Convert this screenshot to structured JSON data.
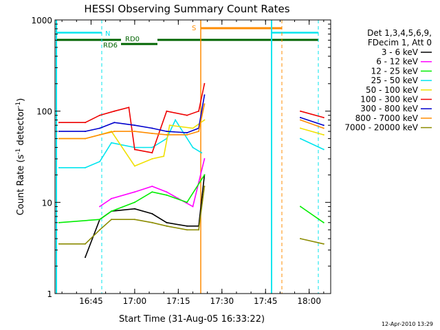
{
  "chart_data": {
    "type": "line",
    "title": "HESSI Observing Summary Count Rates",
    "xlabel": "Start Time (31-Aug-05 16:33:22)",
    "ylabel_main": "Count Rate (s",
    "ylabel_sup1": "-1",
    "ylabel_mid": " detector",
    "ylabel_sup2": "-1",
    "ylabel_end": ")",
    "y_scale": "log",
    "ylim": [
      1,
      1000
    ],
    "xlim": [
      "16:33",
      "18:07"
    ],
    "x_ticks": [
      "16:45",
      "17:00",
      "17:15",
      "17:30",
      "17:45",
      "18:00"
    ],
    "y_ticks": [
      "1",
      "10",
      "100",
      "1000"
    ],
    "legend_title": [
      "Det 1,3,4,5,6,9,",
      "FDecim 1, Att 0"
    ],
    "legend_placement": "right",
    "footer": "12-Apr-2010 13:29",
    "flags": [
      {
        "label": "N",
        "color": "#00e5ee"
      },
      {
        "label": "S",
        "color": "#ff8c00"
      },
      {
        "label": "RD0",
        "color": "#006400"
      },
      {
        "label": "RD6",
        "color": "#006400"
      }
    ],
    "series": [
      {
        "name": "3 - 6 keV",
        "color": "#000000",
        "x": [
          "16:43",
          "16:48",
          "16:52",
          "17:00",
          "17:06",
          "17:11",
          "17:18",
          "17:22",
          "17:24"
        ],
        "y": [
          2.5,
          6.5,
          8,
          8.5,
          7.5,
          6,
          5.5,
          5.5,
          20
        ]
      },
      {
        "name": "6 - 12 keV",
        "color": "#ff00ff",
        "x": [
          "16:48",
          "16:52",
          "17:00",
          "17:06",
          "17:11",
          "17:15",
          "17:20",
          "17:24"
        ],
        "y": [
          9,
          11,
          13,
          15,
          13,
          11,
          9,
          30
        ]
      },
      {
        "name": "12 - 25 keV",
        "color": "#00ee00",
        "x": [
          "16:34",
          "16:48",
          "16:52",
          "17:00",
          "17:06",
          "17:11",
          "17:18",
          "17:24",
          "17:57",
          "18:05"
        ],
        "y": [
          6,
          6.5,
          8,
          10,
          13,
          12,
          10,
          20,
          9,
          6
        ]
      },
      {
        "name": "25 - 50 keV",
        "color": "#00e5ee",
        "x": [
          "16:34",
          "16:43",
          "16:48",
          "16:52",
          "17:00",
          "17:06",
          "17:11",
          "17:14",
          "17:20",
          "17:23",
          "17:57",
          "18:05"
        ],
        "y": [
          24,
          24,
          28,
          45,
          40,
          40,
          50,
          80,
          40,
          35,
          50,
          38
        ]
      },
      {
        "name": "50 - 100 keV",
        "color": "#f0e000",
        "x": [
          "16:34",
          "16:43",
          "16:48",
          "16:52",
          "17:00",
          "17:06",
          "17:10",
          "17:12",
          "17:20",
          "17:24",
          "17:57",
          "18:05"
        ],
        "y": [
          50,
          50,
          55,
          60,
          25,
          30,
          32,
          70,
          65,
          80,
          65,
          55
        ]
      },
      {
        "name": "100 - 300 keV",
        "color": "#ee0000",
        "x": [
          "16:34",
          "16:43",
          "16:48",
          "16:53",
          "16:58",
          "17:00",
          "17:06",
          "17:11",
          "17:18",
          "17:22",
          "17:24",
          "17:57",
          "18:05"
        ],
        "y": [
          75,
          75,
          90,
          100,
          110,
          38,
          35,
          100,
          90,
          100,
          200,
          100,
          85
        ]
      },
      {
        "name": "300 - 800 keV",
        "color": "#0000cd",
        "x": [
          "16:34",
          "16:43",
          "16:48",
          "16:53",
          "17:00",
          "17:06",
          "17:11",
          "17:18",
          "17:22",
          "17:24",
          "17:57",
          "18:05"
        ],
        "y": [
          60,
          60,
          65,
          75,
          70,
          65,
          60,
          58,
          65,
          150,
          85,
          70
        ]
      },
      {
        "name": "800 - 7000 keV",
        "color": "#ff8c00",
        "x": [
          "16:34",
          "16:43",
          "16:48",
          "16:53",
          "17:00",
          "17:06",
          "17:11",
          "17:18",
          "17:22",
          "17:24",
          "17:57",
          "18:05"
        ],
        "y": [
          50,
          50,
          55,
          60,
          60,
          57,
          55,
          55,
          60,
          120,
          80,
          65
        ]
      },
      {
        "name": "7000 - 20000 keV",
        "color": "#8b8b00",
        "x": [
          "16:34",
          "16:43",
          "16:48",
          "16:52",
          "17:00",
          "17:06",
          "17:11",
          "17:18",
          "17:22",
          "17:24",
          "17:57",
          "18:05"
        ],
        "y": [
          3.5,
          3.5,
          5,
          6.5,
          6.5,
          6,
          5.5,
          5,
          5,
          15,
          4,
          3.5
        ]
      }
    ]
  }
}
